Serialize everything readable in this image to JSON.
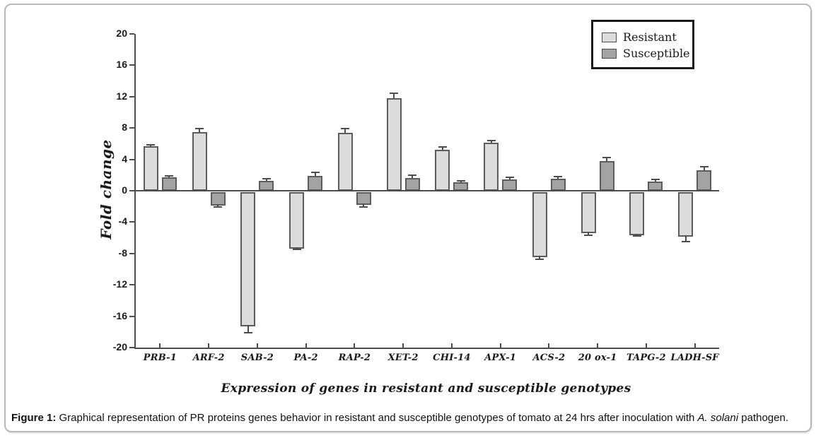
{
  "caption": {
    "label": "Figure 1:",
    "before_species": " Graphical representation of PR proteins genes behavior in resistant and susceptible genotypes of tomato at 24 hrs after inoculation with ",
    "species": "A. solani",
    "after_species": " pathogen."
  },
  "colors": {
    "resistant_fill": "#dcdcdc",
    "susceptible_fill": "#a3a3a3",
    "bar_border": "#5c5c5c",
    "axis": "#4d4d4d",
    "frame_border": "#b9b9b9"
  },
  "chart_data": {
    "type": "bar",
    "title": "",
    "xlabel": "Expression of genes in resistant and susceptible genotypes",
    "ylabel": "Fold change",
    "ylim": [
      -20,
      20
    ],
    "yticks": [
      20,
      16,
      12,
      8,
      4,
      0,
      -4,
      -8,
      -12,
      -16,
      -20
    ],
    "grid": false,
    "legend_position": "top-right",
    "error_bars": "one-sided outward with caps",
    "categories": [
      "PRB-1",
      "ARF-2",
      "SAB-2",
      "PA-2",
      "RAP-2",
      "XET-2",
      "CHI-14",
      "APX-1",
      "ACS-2",
      "20 ox-1",
      "TAPG-2",
      "LADH-SF"
    ],
    "series": [
      {
        "name": "Resistant",
        "color": "#dcdcdc",
        "values": [
          5.7,
          7.5,
          -17.1,
          -7.2,
          7.4,
          11.8,
          5.2,
          6.1,
          -8.3,
          -5.2,
          -5.5,
          -5.7
        ],
        "errors": [
          0.2,
          0.4,
          1.0,
          0.3,
          0.5,
          0.6,
          0.4,
          0.3,
          0.4,
          0.5,
          0.3,
          0.8
        ]
      },
      {
        "name": "Susceptible",
        "color": "#a3a3a3",
        "values": [
          1.7,
          -1.7,
          1.3,
          1.9,
          -1.6,
          1.6,
          1.1,
          1.4,
          1.5,
          3.8,
          1.2,
          2.6
        ],
        "errors": [
          0.2,
          0.4,
          0.2,
          0.4,
          0.5,
          0.4,
          0.2,
          0.3,
          0.3,
          0.4,
          0.2,
          0.5
        ]
      }
    ]
  }
}
